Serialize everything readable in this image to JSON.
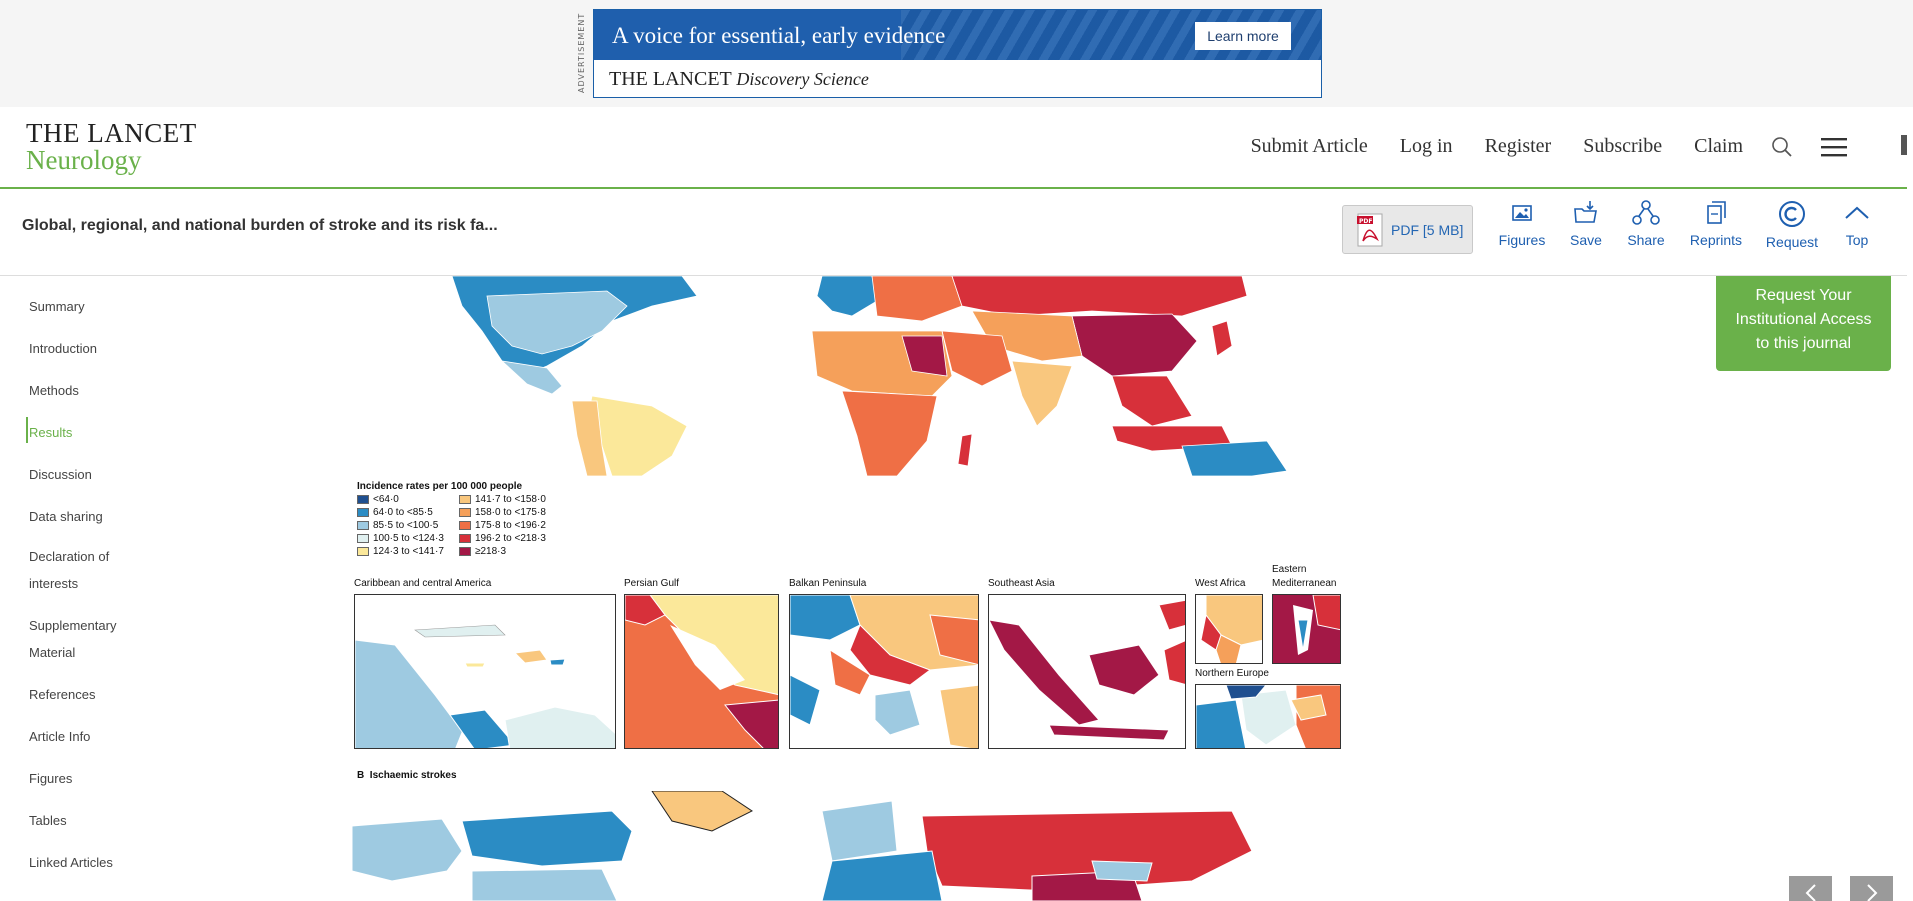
{
  "ad": {
    "side_label": "ADVERTISEMENT",
    "tagline": "A voice for essential, early evidence",
    "button": "Learn more",
    "brand": "THE LANCET",
    "brand_sub": "Discovery Science"
  },
  "header": {
    "logo_top": "THE LANCET",
    "logo_bottom": "Neurology",
    "nav": [
      "Submit Article",
      "Log in",
      "Register",
      "Subscribe",
      "Claim"
    ]
  },
  "article": {
    "title": "Global, regional, and national burden of stroke and its risk fa...",
    "pdf_label": "PDF [5 MB]",
    "tools": [
      "Figures",
      "Save",
      "Share",
      "Reprints",
      "Request",
      "Top"
    ]
  },
  "sidebar": {
    "items": [
      "Summary",
      "Introduction",
      "Methods",
      "Results",
      "Discussion",
      "Data sharing",
      "Declaration of",
      "interests",
      "Supplementary",
      "Material",
      "References",
      "Article Info",
      "Figures",
      "Tables",
      "Linked Articles"
    ],
    "active": "Results"
  },
  "figure": {
    "legend_title": "Incidence rates per 100 000 people",
    "legend": [
      {
        "label": "<64·0",
        "color": "#1f4f8f"
      },
      {
        "label": "64·0 to <85·5",
        "color": "#2b8cc4"
      },
      {
        "label": "85·5 to <100·5",
        "color": "#9ecae1"
      },
      {
        "label": "100·5 to <124·3",
        "color": "#e0f0f0"
      },
      {
        "label": "124·3 to <141·7",
        "color": "#fbe89a"
      },
      {
        "label": "141·7 to <158·0",
        "color": "#f9c77e"
      },
      {
        "label": "158·0 to <175·8",
        "color": "#f5a05a"
      },
      {
        "label": "175·8 to <196·2",
        "color": "#ef6f45"
      },
      {
        "label": "196·2 to <218·3",
        "color": "#d7303a"
      },
      {
        "label": "≥218·3",
        "color": "#a31846"
      }
    ],
    "insets": {
      "caribbean": "Caribbean and central America",
      "persian": "Persian Gulf",
      "balkan": "Balkan Peninsula",
      "seasia": "Southeast Asia",
      "westafrica": "West Africa",
      "eastmed_1": "Eastern",
      "eastmed_2": "Mediterranean",
      "northeu": "Northern Europe"
    },
    "panel_b_letter": "B",
    "panel_b_title": "Ischaemic strokes"
  },
  "request_box": {
    "line1": "Request Your",
    "line2": "Institutional Access",
    "line3": "to this journal"
  }
}
